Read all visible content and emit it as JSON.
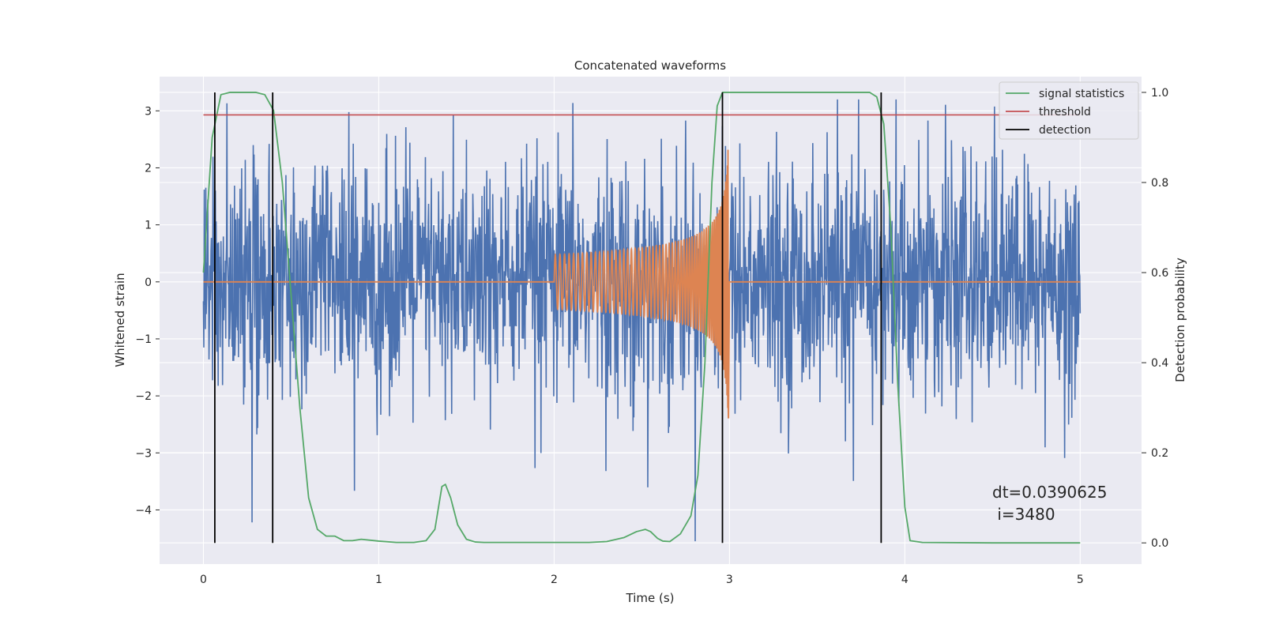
{
  "chart_data": {
    "type": "line",
    "title": "Concatenated waveforms",
    "xlabel": "Time (s)",
    "ylabel": "Whitened strain",
    "y2label": "Detection probability",
    "xlim": [
      -0.25,
      5.35
    ],
    "ylim": [
      -4.95,
      3.6
    ],
    "y2lim": [
      -0.047,
      1.035
    ],
    "x_ticks": [
      0,
      1,
      2,
      3,
      4,
      5
    ],
    "y_ticks": [
      3,
      2,
      1,
      0,
      -1,
      -2,
      -3,
      -4
    ],
    "y2_ticks": [
      1.0,
      0.8,
      0.6,
      0.4,
      0.2,
      0.0
    ],
    "grid": true,
    "legend_position": "top-right",
    "colors": {
      "strain": "#4c72b0",
      "injection": "#dd8452",
      "signal_statistics": "#55a868",
      "threshold": "#c44e52",
      "detection": "#000000",
      "background": "#eaeaf2",
      "grid": "#ffffff"
    },
    "series": [
      {
        "name": "signal statistics",
        "axis": "right",
        "x": [
          0.0,
          0.05,
          0.1,
          0.15,
          0.2,
          0.25,
          0.3,
          0.35,
          0.4,
          0.45,
          0.5,
          0.55,
          0.6,
          0.65,
          0.7,
          0.75,
          0.8,
          0.85,
          0.9,
          1.0,
          1.1,
          1.2,
          1.27,
          1.32,
          1.36,
          1.38,
          1.41,
          1.45,
          1.5,
          1.55,
          1.6,
          1.8,
          2.0,
          2.2,
          2.3,
          2.4,
          2.47,
          2.52,
          2.55,
          2.59,
          2.62,
          2.66,
          2.72,
          2.78,
          2.82,
          2.86,
          2.9,
          2.93,
          2.96,
          3.0,
          3.2,
          3.4,
          3.6,
          3.8,
          3.84,
          3.88,
          3.92,
          3.96,
          4.0,
          4.03,
          4.1,
          4.5,
          5.0
        ],
        "y": [
          0.6,
          0.9,
          0.995,
          1.0,
          1.0,
          1.0,
          1.0,
          0.995,
          0.96,
          0.8,
          0.55,
          0.3,
          0.1,
          0.03,
          0.015,
          0.015,
          0.005,
          0.005,
          0.008,
          0.004,
          0.001,
          0.001,
          0.005,
          0.03,
          0.125,
          0.13,
          0.1,
          0.04,
          0.008,
          0.002,
          0.001,
          0.001,
          0.001,
          0.001,
          0.003,
          0.012,
          0.025,
          0.03,
          0.025,
          0.01,
          0.004,
          0.003,
          0.02,
          0.06,
          0.15,
          0.4,
          0.8,
          0.97,
          1.0,
          1.0,
          1.0,
          1.0,
          1.0,
          1.0,
          0.99,
          0.93,
          0.7,
          0.35,
          0.08,
          0.005,
          0.001,
          0.0,
          0.0
        ]
      },
      {
        "name": "threshold",
        "axis": "right",
        "x": [
          0.0,
          5.0
        ],
        "y": [
          0.95,
          0.95
        ]
      },
      {
        "name": "detection",
        "axis": "right",
        "type": "vlines",
        "x": [
          0.065,
          0.395,
          2.96,
          3.865
        ],
        "y_range": [
          0.0,
          1.0
        ]
      }
    ],
    "noise_series": {
      "axis": "left",
      "x_range": [
        0.0,
        5.0
      ],
      "typical_amplitude": 1.0,
      "y_min": -4.55,
      "y_max": 3.2
    },
    "injection_series": {
      "axis": "left",
      "x_range": [
        2.0,
        3.0
      ],
      "peak_amplitude": 2.6,
      "chirp_end": 2.995,
      "outside_value": 0.0
    },
    "annotations": [
      "dt=0.0390625",
      " i=3480"
    ]
  }
}
